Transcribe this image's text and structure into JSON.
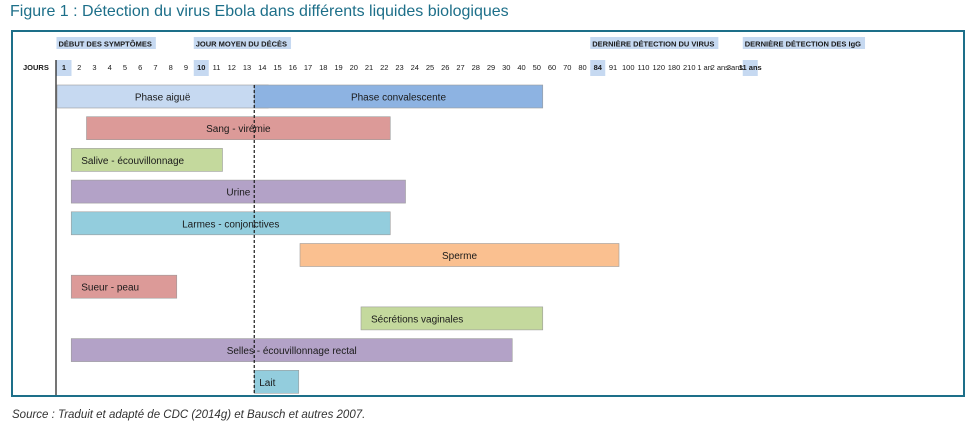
{
  "figure": {
    "title": "Figure 1 : Détection du virus Ebola dans différents liquides biologiques",
    "source": "Source : Traduit et adapté de CDC (2014g) et Bausch et autres 2007."
  },
  "chart_data": {
    "type": "bar",
    "orientation": "horizontal-timeline",
    "axis_title": "JOURS",
    "ticks": [
      "1",
      "2",
      "3",
      "4",
      "5",
      "6",
      "7",
      "8",
      "9",
      "10",
      "11",
      "12",
      "13",
      "14",
      "15",
      "16",
      "17",
      "18",
      "19",
      "20",
      "21",
      "22",
      "23",
      "24",
      "25",
      "26",
      "27",
      "28",
      "29",
      "30",
      "40",
      "50",
      "60",
      "70",
      "80",
      "84",
      "91",
      "100",
      "110",
      "120",
      "180",
      "210",
      "1 an",
      "2 ans",
      "3ans",
      "11 ans"
    ],
    "highlighted_ticks": [
      "1",
      "10",
      "84",
      "11 ans"
    ],
    "milestones": [
      {
        "label": "DÉBUT DES SYMPTÔMES",
        "tick": "1"
      },
      {
        "label": "JOUR MOYEN DU DÉCÈS",
        "tick": "10"
      },
      {
        "label": "DERNIÈRE DÉTECTION DU VIRUS",
        "tick": "84"
      },
      {
        "label": "DERNIÈRE DÉTECTION DES IgG",
        "tick": "11 ans"
      }
    ],
    "reference_line_tick": "14",
    "bars": [
      {
        "label": "Phase aiguë",
        "start": "1",
        "end": "14",
        "color": "#c6d9f1"
      },
      {
        "label": "Phase convalescente",
        "start": "14",
        "end": "50",
        "color": "#8db3e2"
      },
      {
        "label": "Sang - virémie",
        "start": "3",
        "end": "22",
        "color": "#dc9a98"
      },
      {
        "label": "Salive - écouvillonnage",
        "start": "2",
        "end": "11",
        "color": "#c4d99d"
      },
      {
        "label": "Urine",
        "start": "2",
        "end": "23",
        "color": "#b3a2c7"
      },
      {
        "label": "Larmes - conjonctives",
        "start": "2",
        "end": "22",
        "color": "#93cddd"
      },
      {
        "label": "Sperme",
        "start": "17",
        "end": "91",
        "color": "#fac090"
      },
      {
        "label": "Sueur - peau",
        "start": "2",
        "end": "8",
        "color": "#dc9a98"
      },
      {
        "label": "Sécrétions vaginales",
        "start": "21",
        "end": "50",
        "color": "#c4d99d"
      },
      {
        "label": "Selles - écouvillonnage rectal",
        "start": "2",
        "end": "30",
        "color": "#b3a2c7"
      },
      {
        "label": "Lait",
        "start": "14",
        "end": "16",
        "color": "#93cddd"
      }
    ],
    "colors": {
      "frame": "#1d6f89",
      "highlight": "#c6d9f1",
      "divider": "#1a1a1a",
      "bar_border": "#9c9c9c"
    }
  }
}
